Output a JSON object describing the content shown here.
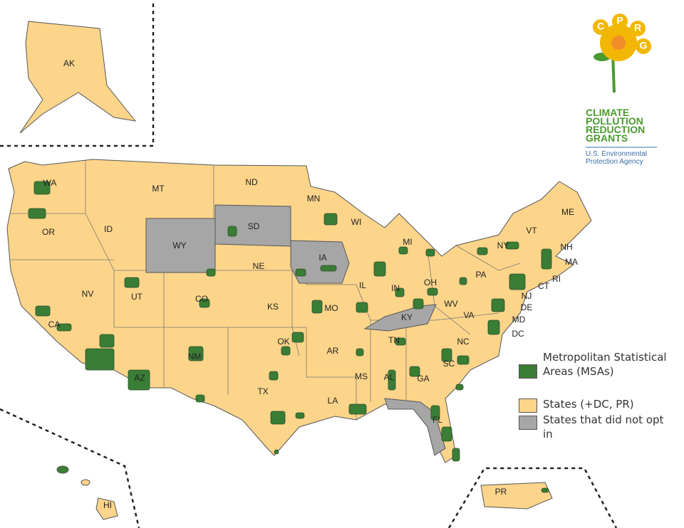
{
  "map": {
    "state_labels": [
      "AK",
      "WA",
      "MT",
      "ND",
      "MN",
      "WI",
      "MI",
      "ME",
      "VT",
      "NY",
      "NH",
      "MA",
      "RI",
      "CT",
      "NJ",
      "DE",
      "MD",
      "DC",
      "OR",
      "ID",
      "WY",
      "SD",
      "IA",
      "NE",
      "UT",
      "NV",
      "CO",
      "KS",
      "MO",
      "IL",
      "IN",
      "OH",
      "PA",
      "WV",
      "VA",
      "KY",
      "CA",
      "AZ",
      "NM",
      "OK",
      "AR",
      "TN",
      "NC",
      "SC",
      "MS",
      "AL",
      "GA",
      "TX",
      "LA",
      "FL",
      "HI",
      "PR"
    ]
  },
  "legend": {
    "items": [
      "Metropolitan Statistical Areas (MSAs)",
      "States (+DC, PR)",
      "States that did not opt in"
    ]
  },
  "logo": {
    "letters": [
      "C",
      "P",
      "R",
      "G"
    ],
    "title": [
      "CLIMATE",
      "POLLUTION",
      "REDUCTION",
      "GRANTS"
    ],
    "agency": [
      "U.S. Environmental",
      "Protection Agency"
    ]
  }
}
